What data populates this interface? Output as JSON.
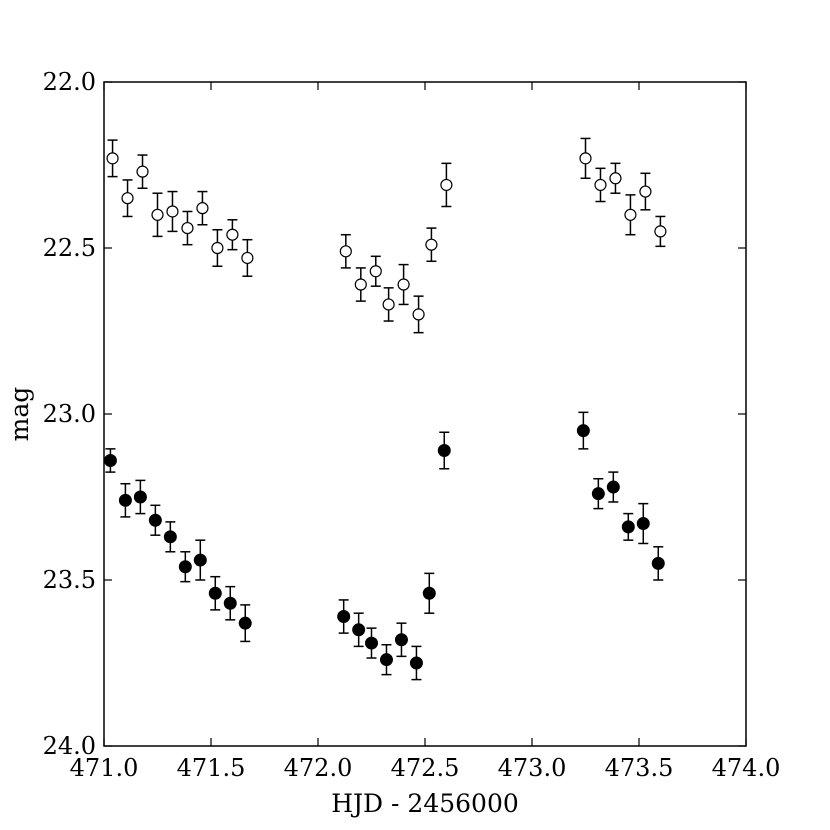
{
  "chart_data": {
    "type": "scatter",
    "xlabel": "HJD - 2456000",
    "ylabel": "mag",
    "xlim": [
      471.0,
      474.0
    ],
    "ylim": [
      22.0,
      24.0
    ],
    "y_inverted": true,
    "grid": false,
    "x_ticks": [
      "471.0",
      "471.5",
      "472.0",
      "472.5",
      "473.0",
      "473.5",
      "474.0"
    ],
    "y_ticks": [
      "22.0",
      "22.5",
      "23.0",
      "23.5",
      "24.0"
    ],
    "series": [
      {
        "marker": "open-circle",
        "color": "#000000",
        "points": [
          {
            "x": 471.04,
            "y": 22.23,
            "err": 0.055
          },
          {
            "x": 471.11,
            "y": 22.35,
            "err": 0.055
          },
          {
            "x": 471.18,
            "y": 22.27,
            "err": 0.05
          },
          {
            "x": 471.25,
            "y": 22.4,
            "err": 0.065
          },
          {
            "x": 471.32,
            "y": 22.39,
            "err": 0.06
          },
          {
            "x": 471.39,
            "y": 22.44,
            "err": 0.05
          },
          {
            "x": 471.46,
            "y": 22.38,
            "err": 0.05
          },
          {
            "x": 471.53,
            "y": 22.5,
            "err": 0.055
          },
          {
            "x": 471.6,
            "y": 22.46,
            "err": 0.045
          },
          {
            "x": 471.67,
            "y": 22.53,
            "err": 0.055
          },
          {
            "x": 472.13,
            "y": 22.51,
            "err": 0.05
          },
          {
            "x": 472.2,
            "y": 22.61,
            "err": 0.05
          },
          {
            "x": 472.27,
            "y": 22.57,
            "err": 0.045
          },
          {
            "x": 472.33,
            "y": 22.67,
            "err": 0.05
          },
          {
            "x": 472.4,
            "y": 22.61,
            "err": 0.06
          },
          {
            "x": 472.47,
            "y": 22.7,
            "err": 0.055
          },
          {
            "x": 472.53,
            "y": 22.49,
            "err": 0.05
          },
          {
            "x": 472.6,
            "y": 22.31,
            "err": 0.065
          },
          {
            "x": 473.25,
            "y": 22.23,
            "err": 0.06
          },
          {
            "x": 473.32,
            "y": 22.31,
            "err": 0.05
          },
          {
            "x": 473.39,
            "y": 22.29,
            "err": 0.045
          },
          {
            "x": 473.46,
            "y": 22.4,
            "err": 0.06
          },
          {
            "x": 473.53,
            "y": 22.33,
            "err": 0.055
          },
          {
            "x": 473.6,
            "y": 22.45,
            "err": 0.045
          }
        ]
      },
      {
        "marker": "filled-circle",
        "color": "#000000",
        "points": [
          {
            "x": 471.03,
            "y": 23.14,
            "err": 0.035
          },
          {
            "x": 471.1,
            "y": 23.26,
            "err": 0.05
          },
          {
            "x": 471.17,
            "y": 23.25,
            "err": 0.05
          },
          {
            "x": 471.24,
            "y": 23.32,
            "err": 0.045
          },
          {
            "x": 471.31,
            "y": 23.37,
            "err": 0.045
          },
          {
            "x": 471.38,
            "y": 23.46,
            "err": 0.045
          },
          {
            "x": 471.45,
            "y": 23.44,
            "err": 0.06
          },
          {
            "x": 471.52,
            "y": 23.54,
            "err": 0.05
          },
          {
            "x": 471.59,
            "y": 23.57,
            "err": 0.05
          },
          {
            "x": 471.66,
            "y": 23.63,
            "err": 0.055
          },
          {
            "x": 472.12,
            "y": 23.61,
            "err": 0.05
          },
          {
            "x": 472.19,
            "y": 23.65,
            "err": 0.05
          },
          {
            "x": 472.25,
            "y": 23.69,
            "err": 0.045
          },
          {
            "x": 472.32,
            "y": 23.74,
            "err": 0.045
          },
          {
            "x": 472.39,
            "y": 23.68,
            "err": 0.05
          },
          {
            "x": 472.46,
            "y": 23.75,
            "err": 0.05
          },
          {
            "x": 472.52,
            "y": 23.54,
            "err": 0.06
          },
          {
            "x": 472.59,
            "y": 23.11,
            "err": 0.055
          },
          {
            "x": 473.24,
            "y": 23.05,
            "err": 0.055
          },
          {
            "x": 473.31,
            "y": 23.24,
            "err": 0.045
          },
          {
            "x": 473.38,
            "y": 23.22,
            "err": 0.045
          },
          {
            "x": 473.45,
            "y": 23.34,
            "err": 0.04
          },
          {
            "x": 473.52,
            "y": 23.33,
            "err": 0.06
          },
          {
            "x": 473.59,
            "y": 23.45,
            "err": 0.05
          }
        ]
      }
    ]
  }
}
